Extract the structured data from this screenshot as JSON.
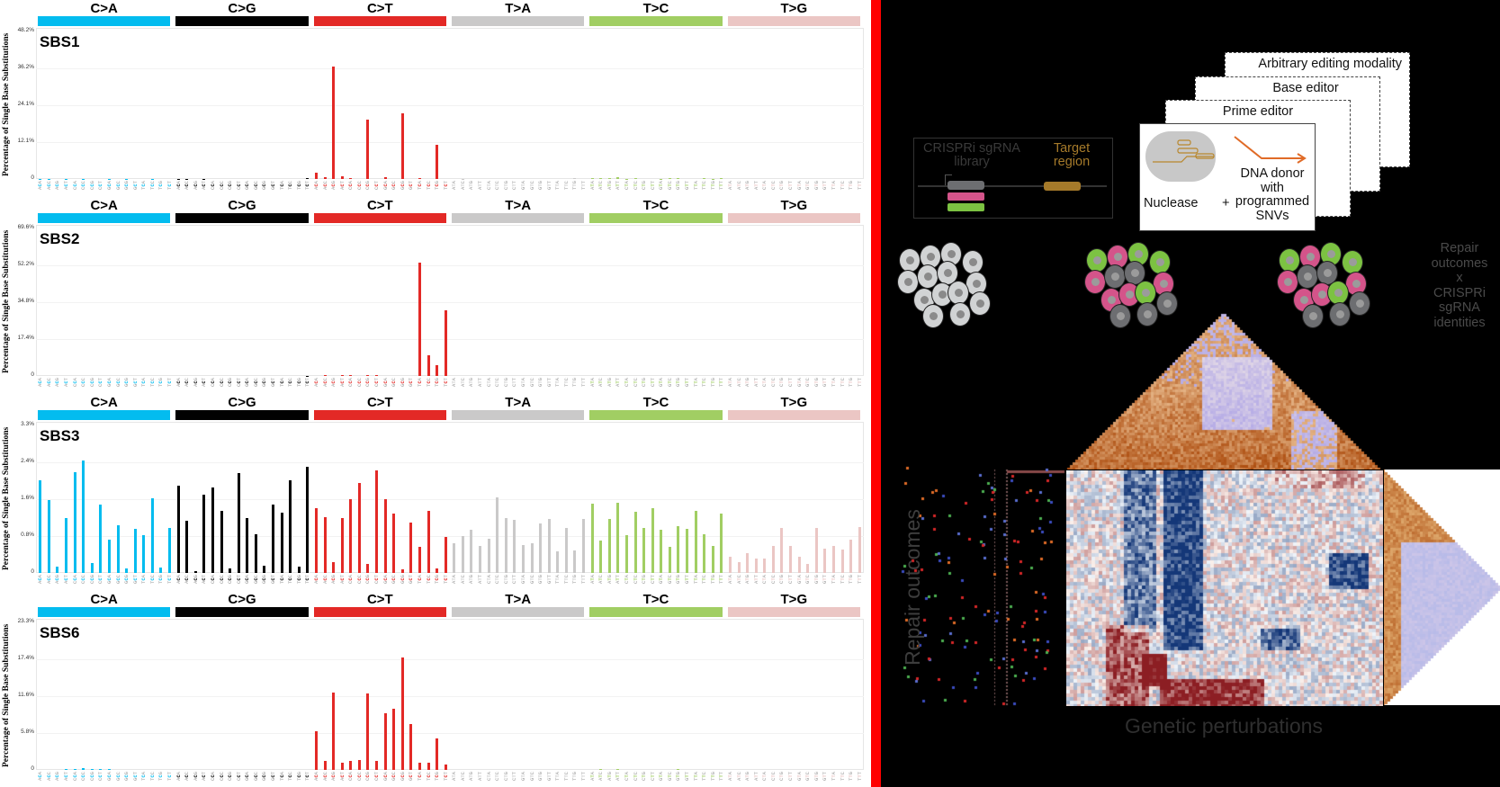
{
  "left_figure": {
    "y_axis_label": "Percentage of Single Base Substitutions",
    "mutation_categories": [
      {
        "label": "C>A",
        "color": "#03bcef"
      },
      {
        "label": "C>G",
        "color": "#010101"
      },
      {
        "label": "C>T",
        "color": "#e32926"
      },
      {
        "label": "T>A",
        "color": "#cac9c9"
      },
      {
        "label": "T>C",
        "color": "#a1ce63"
      },
      {
        "label": "T>G",
        "color": "#ebc6c4"
      }
    ],
    "trinucleotide_contexts": [
      "ACA",
      "ACC",
      "ACG",
      "ACT",
      "CCA",
      "CCC",
      "CCG",
      "CCT",
      "GCA",
      "GCC",
      "GCG",
      "GCT",
      "TCA",
      "TCC",
      "TCG",
      "TCT"
    ],
    "trinucleotide_contexts_T": [
      "ATA",
      "ATC",
      "ATG",
      "ATT",
      "CTA",
      "CTC",
      "CTG",
      "CTT",
      "GTA",
      "GTC",
      "GTG",
      "GTT",
      "TTA",
      "TTC",
      "TTG",
      "TTT"
    ]
  },
  "right_figure": {
    "library_box": {
      "title_line1": "CRISPRi sgRNA",
      "title_line2": "library",
      "target_line1": "Target",
      "target_line2": "region"
    },
    "cards": [
      {
        "label": "Arbitrary editing modality"
      },
      {
        "label": "Base editor"
      },
      {
        "label": "Prime editor"
      }
    ],
    "front_card": {
      "nuclease": "Nuclease",
      "plus": "+",
      "donor_line1": "DNA donor",
      "donor_line2": "with",
      "donor_line3": "programmed",
      "donor_line4": "SNVs"
    },
    "side_text": [
      "Repair",
      "outcomes",
      "x",
      "CRISPRi",
      "sgRNA",
      "identities"
    ],
    "y_label": "Repair outcomes",
    "x_label": "Genetic perturbations",
    "colors": {
      "pink": "#d4548a",
      "green": "#7cc242",
      "grey_cell": "#6d6e71",
      "light_cell": "#d1d3d4",
      "gold": "#a57a2a",
      "arrow": "#e06b27"
    }
  },
  "chart_data": [
    {
      "type": "bar",
      "title": "SBS1",
      "ylabel": "Percentage of Single Base Substitutions",
      "yticks": [
        "0",
        "12.1%",
        "24.1%",
        "36.2%",
        "48.2%"
      ],
      "ylim": [
        0,
        48.2
      ],
      "grid": true,
      "series": [
        {
          "name": "C>A",
          "values": [
            0.1,
            0.1,
            0,
            0.1,
            0,
            0.1,
            0,
            0,
            0.1,
            0,
            0.1,
            0,
            0,
            0.1,
            0,
            0
          ]
        },
        {
          "name": "C>G",
          "values": [
            0.1,
            0.1,
            0,
            0.1,
            0,
            0,
            0,
            0,
            0,
            0,
            0,
            0,
            0,
            0,
            0,
            0.2
          ]
        },
        {
          "name": "C>T",
          "values": [
            2.1,
            0.7,
            36.8,
            0.9,
            0.3,
            0,
            19.3,
            0,
            0.5,
            0,
            21.4,
            0,
            0.2,
            0,
            11.2,
            0
          ]
        },
        {
          "name": "T>A",
          "values": [
            0,
            0.1,
            0,
            0,
            0,
            0,
            0,
            0,
            0,
            0,
            0,
            0,
            0,
            0,
            0.3,
            0
          ]
        },
        {
          "name": "T>C",
          "values": [
            0.2,
            0.2,
            0.3,
            0.5,
            0.1,
            0.3,
            0,
            0,
            0.1,
            0.2,
            0.2,
            0,
            0,
            0.3,
            0.1,
            0.4
          ]
        },
        {
          "name": "T>G",
          "values": [
            0,
            0,
            0,
            0,
            0,
            0,
            0,
            0,
            0,
            0,
            0,
            0,
            0,
            0,
            0,
            0
          ]
        }
      ]
    },
    {
      "type": "bar",
      "title": "SBS2",
      "ylabel": "Percentage of Single Base Substitutions",
      "yticks": [
        "0",
        "17.4%",
        "34.8%",
        "52.2%",
        "69.6%"
      ],
      "ylim": [
        0,
        69.6
      ],
      "grid": true,
      "series": [
        {
          "name": "C>A",
          "values": [
            0,
            0,
            0,
            0,
            0,
            0,
            0,
            0,
            0,
            0,
            0,
            0,
            0,
            0,
            0,
            0
          ]
        },
        {
          "name": "C>G",
          "values": [
            0,
            0,
            0,
            0,
            0,
            0,
            0,
            0,
            0,
            0,
            0,
            0,
            0,
            0,
            0,
            0.2
          ]
        },
        {
          "name": "C>T",
          "values": [
            0,
            0.3,
            0,
            0.4,
            0.5,
            0,
            0.3,
            0.3,
            0,
            0,
            0,
            0,
            53.5,
            9.7,
            5.1,
            30.9
          ]
        },
        {
          "name": "T>A",
          "values": [
            0,
            0,
            0,
            0,
            0,
            0,
            0,
            0,
            0,
            0,
            0,
            0,
            0,
            0,
            0,
            0
          ]
        },
        {
          "name": "T>C",
          "values": [
            0,
            0,
            0,
            0,
            0,
            0,
            0,
            0,
            0,
            0,
            0,
            0,
            0,
            0,
            0,
            0
          ]
        },
        {
          "name": "T>G",
          "values": [
            0,
            0,
            0,
            0,
            0,
            0,
            0,
            0,
            0,
            0,
            0,
            0,
            0,
            0,
            0,
            0
          ]
        }
      ]
    },
    {
      "type": "bar",
      "title": "SBS3",
      "ylabel": "Percentage of Single Base Substitutions",
      "yticks": [
        "0",
        "0.8%",
        "1.6%",
        "2.4%",
        "3.3%"
      ],
      "ylim": [
        0,
        3.3
      ],
      "grid": true,
      "series": [
        {
          "name": "C>A",
          "values": [
            2.08,
            1.63,
            0.15,
            1.22,
            2.25,
            2.51,
            0.22,
            1.53,
            0.74,
            1.06,
            0.1,
            0.99,
            0.85,
            1.68,
            0.12,
            1.0
          ]
        },
        {
          "name": "C>G",
          "values": [
            1.96,
            1.17,
            0.04,
            1.76,
            1.92,
            1.38,
            0.1,
            2.23,
            1.23,
            0.86,
            0.17,
            1.52,
            1.35,
            2.07,
            0.15,
            2.38
          ]
        },
        {
          "name": "C>T",
          "values": [
            1.44,
            1.24,
            0.25,
            1.23,
            1.64,
            2.01,
            0.21,
            2.29,
            1.66,
            1.33,
            0.08,
            1.13,
            0.58,
            1.38,
            0.11,
            0.8
          ]
        },
        {
          "name": "T>A",
          "values": [
            0.67,
            0.82,
            0.96,
            0.61,
            0.77,
            1.7,
            1.23,
            1.19,
            0.62,
            0.66,
            1.11,
            1.2,
            0.49,
            1.0,
            0.51,
            1.21
          ]
        },
        {
          "name": "T>C",
          "values": [
            1.55,
            0.73,
            1.21,
            1.57,
            0.84,
            1.37,
            1.0,
            1.45,
            0.96,
            0.59,
            1.05,
            0.99,
            1.39,
            0.86,
            0.6,
            1.33
          ]
        },
        {
          "name": "T>G",
          "values": [
            0.36,
            0.25,
            0.45,
            0.32,
            0.33,
            0.6,
            1.0,
            0.61,
            0.36,
            0.2,
            1.0,
            0.55,
            0.6,
            0.52,
            0.74,
            1.02
          ]
        }
      ]
    },
    {
      "type": "bar",
      "title": "SBS6",
      "ylabel": "Percentage of Single Base Substitutions",
      "yticks": [
        "0",
        "5.8%",
        "11.6%",
        "17.4%",
        "23.3%"
      ],
      "ylim": [
        0,
        23.3
      ],
      "grid": true,
      "series": [
        {
          "name": "C>A",
          "values": [
            0,
            0,
            0,
            0.1,
            0.1,
            0.3,
            0.1,
            0.2,
            0.1,
            0,
            0,
            0,
            0,
            0,
            0,
            0
          ]
        },
        {
          "name": "C>G",
          "values": [
            0,
            0,
            0,
            0,
            0,
            0,
            0,
            0,
            0,
            0,
            0,
            0,
            0,
            0,
            0,
            0
          ]
        },
        {
          "name": "C>T",
          "values": [
            6.1,
            1.4,
            12.2,
            1.2,
            1.4,
            1.5,
            12.1,
            1.4,
            9.0,
            9.6,
            17.7,
            7.2,
            1.2,
            1.1,
            5.0,
            0.8
          ]
        },
        {
          "name": "T>A",
          "values": [
            0,
            0,
            0,
            0,
            0,
            0,
            0,
            0,
            0,
            0,
            0,
            0,
            0,
            0,
            0,
            0
          ]
        },
        {
          "name": "T>C",
          "values": [
            0,
            0.1,
            0,
            0.2,
            0,
            0,
            0,
            0,
            0,
            0,
            0.1,
            0,
            0,
            0,
            0,
            0
          ]
        },
        {
          "name": "T>G",
          "values": [
            0,
            0,
            0,
            0,
            0,
            0,
            0,
            0,
            0,
            0,
            0,
            0,
            0,
            0,
            0,
            0
          ]
        }
      ]
    }
  ]
}
